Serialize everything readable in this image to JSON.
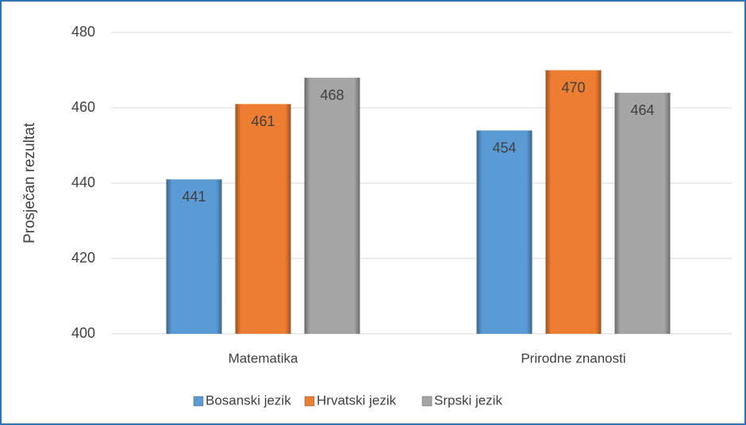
{
  "chart_data": {
    "type": "bar",
    "y_label": "Prosječan rezultat",
    "categories": [
      "Matematika",
      "Prirodne znanosti"
    ],
    "series": [
      {
        "name": "Bosanski jezik",
        "color": "#5b9bd5",
        "values": [
          441,
          454
        ]
      },
      {
        "name": "Hrvatski jezik",
        "color": "#ed7d31",
        "values": [
          461,
          470
        ]
      },
      {
        "name": "Srpski jezik",
        "color": "#a5a5a5",
        "values": [
          468,
          464
        ]
      }
    ],
    "ylim": [
      400,
      480
    ],
    "yticks": [
      400,
      420,
      440,
      460,
      480
    ],
    "grid": true,
    "legend": "bottom"
  }
}
